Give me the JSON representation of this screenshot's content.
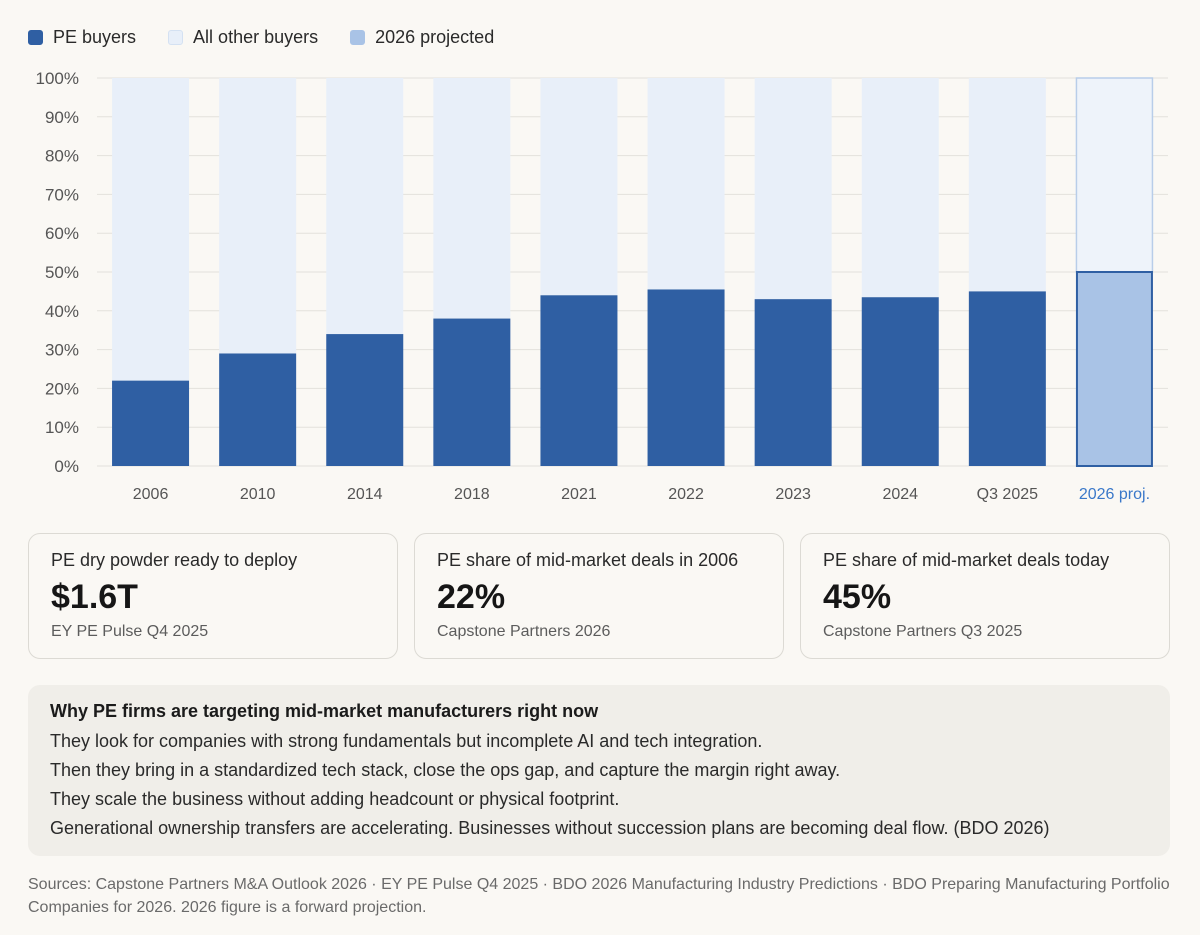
{
  "legend": [
    {
      "label": "PE buyers",
      "color": "#2f5fa3",
      "border": "#2f5fa3"
    },
    {
      "label": "All other buyers",
      "color": "#e8eff9",
      "border": "#d4e1f2"
    },
    {
      "label": "2026 projected",
      "color": "#a9c3e6",
      "border": "#a9c3e6"
    }
  ],
  "chart_data": {
    "type": "bar",
    "stacked": true,
    "categories": [
      "2006",
      "2010",
      "2014",
      "2018",
      "2021",
      "2022",
      "2023",
      "2024",
      "Q3 2025",
      "2026 proj."
    ],
    "series": [
      {
        "name": "PE buyers",
        "values": [
          22,
          29,
          34,
          38,
          44,
          45.5,
          43,
          43.5,
          45,
          50
        ]
      },
      {
        "name": "All other buyers",
        "values": [
          78,
          71,
          66,
          62,
          56,
          54.5,
          57,
          56.5,
          55,
          50
        ]
      }
    ],
    "projected_category": "2026 proj.",
    "ylim": [
      0,
      100
    ],
    "yticks": [
      0,
      10,
      20,
      30,
      40,
      50,
      60,
      70,
      80,
      90,
      100
    ],
    "ytick_suffix": "%",
    "grid": true,
    "colors": {
      "pe": "#2f5fa3",
      "other": "#e8eff9",
      "proj_pe": "#a9c3e6",
      "proj_other": "#eef3fa",
      "proj_stroke": "#2f5fa3",
      "proj_other_stroke": "#b8cde9",
      "grid": "#e3e1dc",
      "tick_text": "#555555",
      "proj_label": "#3a78c9"
    }
  },
  "stats": [
    {
      "label": "PE dry powder ready to deploy",
      "value": "$1.6T",
      "source": "EY PE Pulse Q4 2025"
    },
    {
      "label": "PE share of mid-market deals in 2006",
      "value": "22%",
      "source": "Capstone Partners 2026"
    },
    {
      "label": "PE share of mid-market deals today",
      "value": "45%",
      "source": "Capstone Partners Q3 2025"
    }
  ],
  "why": {
    "title": "Why PE firms are targeting mid-market manufacturers right now",
    "lines": [
      "They look for companies with strong fundamentals but incomplete AI and tech integration.",
      "Then they bring in a standardized tech stack, close the ops gap, and capture the margin right away.",
      "They scale the business without adding headcount or physical footprint.",
      "Generational ownership transfers are accelerating. Businesses without succession plans are becoming deal flow. (BDO 2026)"
    ]
  },
  "sources": "Sources: Capstone Partners M&A Outlook 2026 · EY PE Pulse Q4 2025 · BDO 2026 Manufacturing Industry Predictions · BDO Preparing Manufacturing Portfolio Companies for 2026. 2026 figure is a forward projection."
}
